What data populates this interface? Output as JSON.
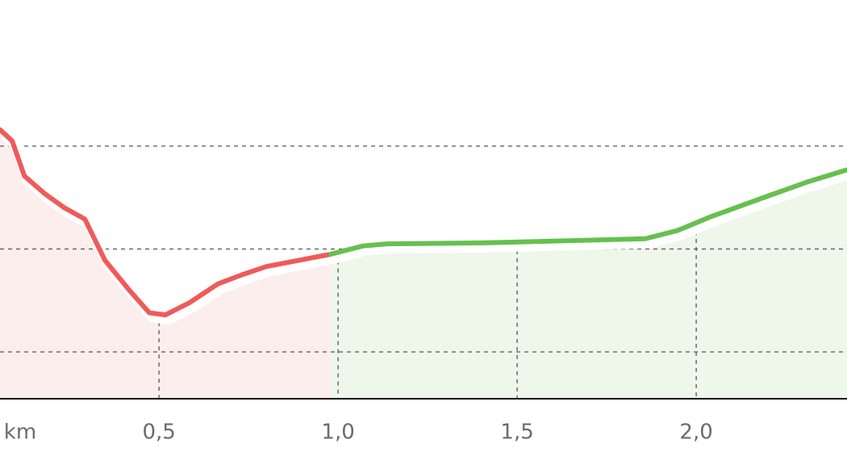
{
  "chart_data": {
    "type": "line",
    "xlabel": "km",
    "xlim": [
      0.056,
      2.421
    ],
    "ylim": [
      5.45,
      44.2
    ],
    "xticks": [
      {
        "value": 0.5,
        "label": "0,5"
      },
      {
        "value": 1.0,
        "label": "1,0"
      },
      {
        "value": 1.5,
        "label": "1,5"
      },
      {
        "value": 2.0,
        "label": "2,0"
      }
    ],
    "yticks": [
      10,
      20,
      30
    ],
    "grid": true,
    "series": [
      {
        "color": "#f05a5a",
        "fill": "#fdeeee",
        "x": [
          0.056,
          0.09,
          0.124,
          0.18,
          0.236,
          0.293,
          0.349,
          0.417,
          0.473,
          0.518,
          0.586,
          0.664,
          0.732,
          0.8,
          0.89,
          0.98
        ],
        "values": [
          31.6,
          30.5,
          27.1,
          25.4,
          24.0,
          22.9,
          18.9,
          16.0,
          13.8,
          13.6,
          14.8,
          16.6,
          17.5,
          18.3,
          18.9,
          19.5
        ]
      },
      {
        "color": "#66c04f",
        "fill": "#eff6ea",
        "x": [
          0.98,
          1.07,
          1.137,
          1.407,
          1.633,
          1.858,
          1.948,
          2.038,
          2.196,
          2.309,
          2.421
        ],
        "values": [
          19.5,
          20.3,
          20.5,
          20.6,
          20.8,
          21.0,
          21.8,
          23.1,
          25.1,
          26.5,
          27.7
        ]
      }
    ]
  }
}
